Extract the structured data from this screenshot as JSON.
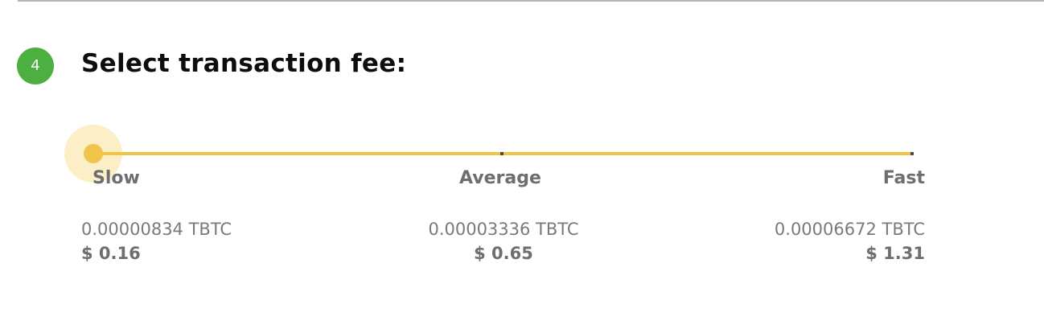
{
  "step": {
    "number": "4",
    "color": "#4caf3f"
  },
  "section": {
    "title": "Select transaction fee:"
  },
  "fee_slider": {
    "selected_option": "Slow",
    "selected_index": 0,
    "accent_color": "#efc443",
    "options": [
      {
        "label": "Slow",
        "crypto_amount": "0.00000834 TBTC",
        "usd_amount": "$ 0.16"
      },
      {
        "label": "Average",
        "crypto_amount": "0.00003336 TBTC",
        "usd_amount": "$ 0.65"
      },
      {
        "label": "Fast",
        "crypto_amount": "0.00006672 TBTC",
        "usd_amount": "$ 1.31"
      }
    ]
  }
}
